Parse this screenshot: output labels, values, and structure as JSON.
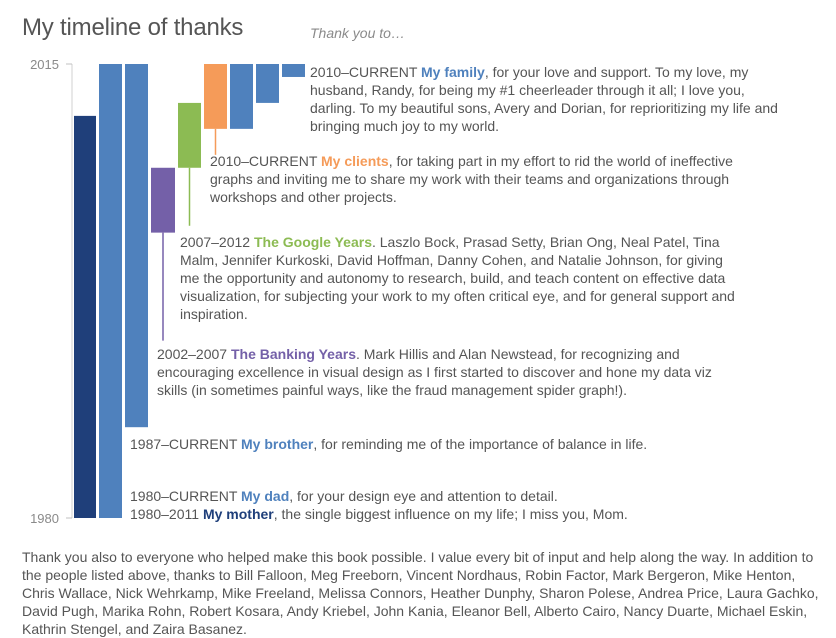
{
  "header": {
    "title": "My timeline of thanks",
    "subtitle": "Thank you to…"
  },
  "chart_data": {
    "type": "timeline-bar",
    "ylim": [
      1980,
      2015
    ],
    "ytick_labels": [
      "2015",
      "1980"
    ],
    "ticks": [
      2015,
      1980
    ],
    "series": [
      {
        "name": "My mother",
        "start": 1980,
        "end": 2011,
        "period": "1980–2011",
        "text": ", the single biggest influence on my life; I miss you, Mom.",
        "color": "#1f3f7a"
      },
      {
        "name": "My dad",
        "start": 1980,
        "end": 2015,
        "period": "1980–CURRENT",
        "text": ", for your design eye and attention to detail.",
        "color": "#4f81bd"
      },
      {
        "name": "My brother",
        "start": 1987,
        "end": 2015,
        "period": "1987–CURRENT",
        "text": ", for reminding me of the importance of balance in life.",
        "color": "#4f81bd"
      },
      {
        "name": "The Banking Years",
        "start": 2002,
        "end": 2007,
        "period": "2002–2007",
        "text": ". Mark Hillis and Alan Newstead, for recognizing and encouraging excellence in visual design as I first started to discover and hone my data viz skills (in sometimes painful ways, like the fraud management spider graph!).",
        "color": "#7460a8"
      },
      {
        "name": "The Google Years",
        "start": 2007,
        "end": 2012,
        "period": "2007–2012",
        "text": ". Laszlo Bock, Prasad Setty, Brian Ong, Neal Patel, Tina Malm, Jennifer Kurkoski, David Hoffman, Danny Cohen, and Natalie Johnson, for giving me the opportunity and autonomy to research, build, and teach content on effective data visualization, for subjecting your work to my often critical eye, and for general support and inspiration.",
        "color": "#8cbb53"
      },
      {
        "name": "My clients",
        "start": 2010,
        "end": 2015,
        "period": "2010–CURRENT",
        "text": ", for taking part in my effort to rid the world of ineffective graphs and inviting me to share my work with their teams and organizations through workshops and other projects.",
        "color": "#f59b59"
      },
      {
        "name": "My family",
        "start": 2010,
        "end": 2015,
        "period": "2010–CURRENT",
        "text": ", for your love and support. To my love, my husband, Randy, for being my #1 cheerleader through it all; I love you, darling. To my beautiful sons, Avery and Dorian, for reprioritizing my life and bringing much joy to my world.",
        "color": "#4f81bd"
      }
    ],
    "family_steps": [
      {
        "start": 2014,
        "end": 2015
      },
      {
        "start": 2012,
        "end": 2015
      }
    ]
  },
  "footer": {
    "text": "Thank you also to everyone who helped make this book possible. I value every bit of input and help along the way. In addition to the people listed above, thanks to Bill Falloon, Meg Freeborn, Vincent Nordhaus, Robin Factor, Mark Bergeron, Mike Henton, Chris Wallace, Nick Wehrkamp, Mike Freeland, Melissa Connors, Heather Dunphy, Sharon Polese, Andrea Price, Laura Gachko, David Pugh, Marika Rohn, Robert Kosara, Andy Kriebel, John Kania, Eleanor Bell, Alberto Cairo, Nancy Duarte, Michael Eskin, Kathrin Stengel, and Zaira Basanez."
  }
}
